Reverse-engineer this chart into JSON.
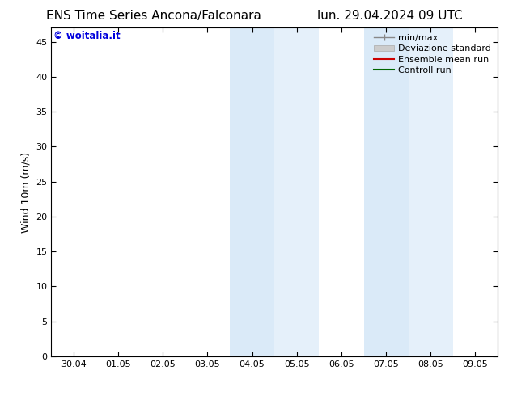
{
  "title_left": "ENS Time Series Ancona/Falconara",
  "title_right": "lun. 29.04.2024 09 UTC",
  "ylabel": "Wind 10m (m/s)",
  "watermark": "© woitalia.it",
  "watermark_color": "#0000dd",
  "background_color": "#ffffff",
  "plot_bg_color": "#ffffff",
  "ylim": [
    0,
    47
  ],
  "yticks": [
    0,
    5,
    10,
    15,
    20,
    25,
    30,
    35,
    40,
    45
  ],
  "x_labels": [
    "30.04",
    "01.05",
    "02.05",
    "03.05",
    "04.05",
    "05.05",
    "06.05",
    "07.05",
    "08.05",
    "09.05"
  ],
  "x_positions": [
    0,
    1,
    2,
    3,
    4,
    5,
    6,
    7,
    8,
    9
  ],
  "xlim": [
    -0.5,
    9.5
  ],
  "shaded_regions": [
    {
      "xmin": 3.5,
      "xmax": 4.5,
      "color": "#daeaf8"
    },
    {
      "xmin": 4.5,
      "xmax": 5.5,
      "color": "#e5f0fa"
    },
    {
      "xmin": 6.5,
      "xmax": 7.5,
      "color": "#daeaf8"
    },
    {
      "xmin": 7.5,
      "xmax": 8.5,
      "color": "#e5f0fa"
    }
  ],
  "legend_entries": [
    {
      "label": "min/max",
      "color": "#888888",
      "linewidth": 1.0,
      "type": "line_with_caps"
    },
    {
      "label": "Deviazione standard",
      "color": "#cccccc",
      "linewidth": 5,
      "type": "bar"
    },
    {
      "label": "Ensemble mean run",
      "color": "#cc0000",
      "linewidth": 1.5,
      "type": "line"
    },
    {
      "label": "Controll run",
      "color": "#006600",
      "linewidth": 1.5,
      "type": "line"
    }
  ],
  "title_fontsize": 11,
  "tick_fontsize": 8,
  "ylabel_fontsize": 9,
  "legend_fontsize": 8,
  "spine_color": "#000000",
  "tick_color": "#000000"
}
